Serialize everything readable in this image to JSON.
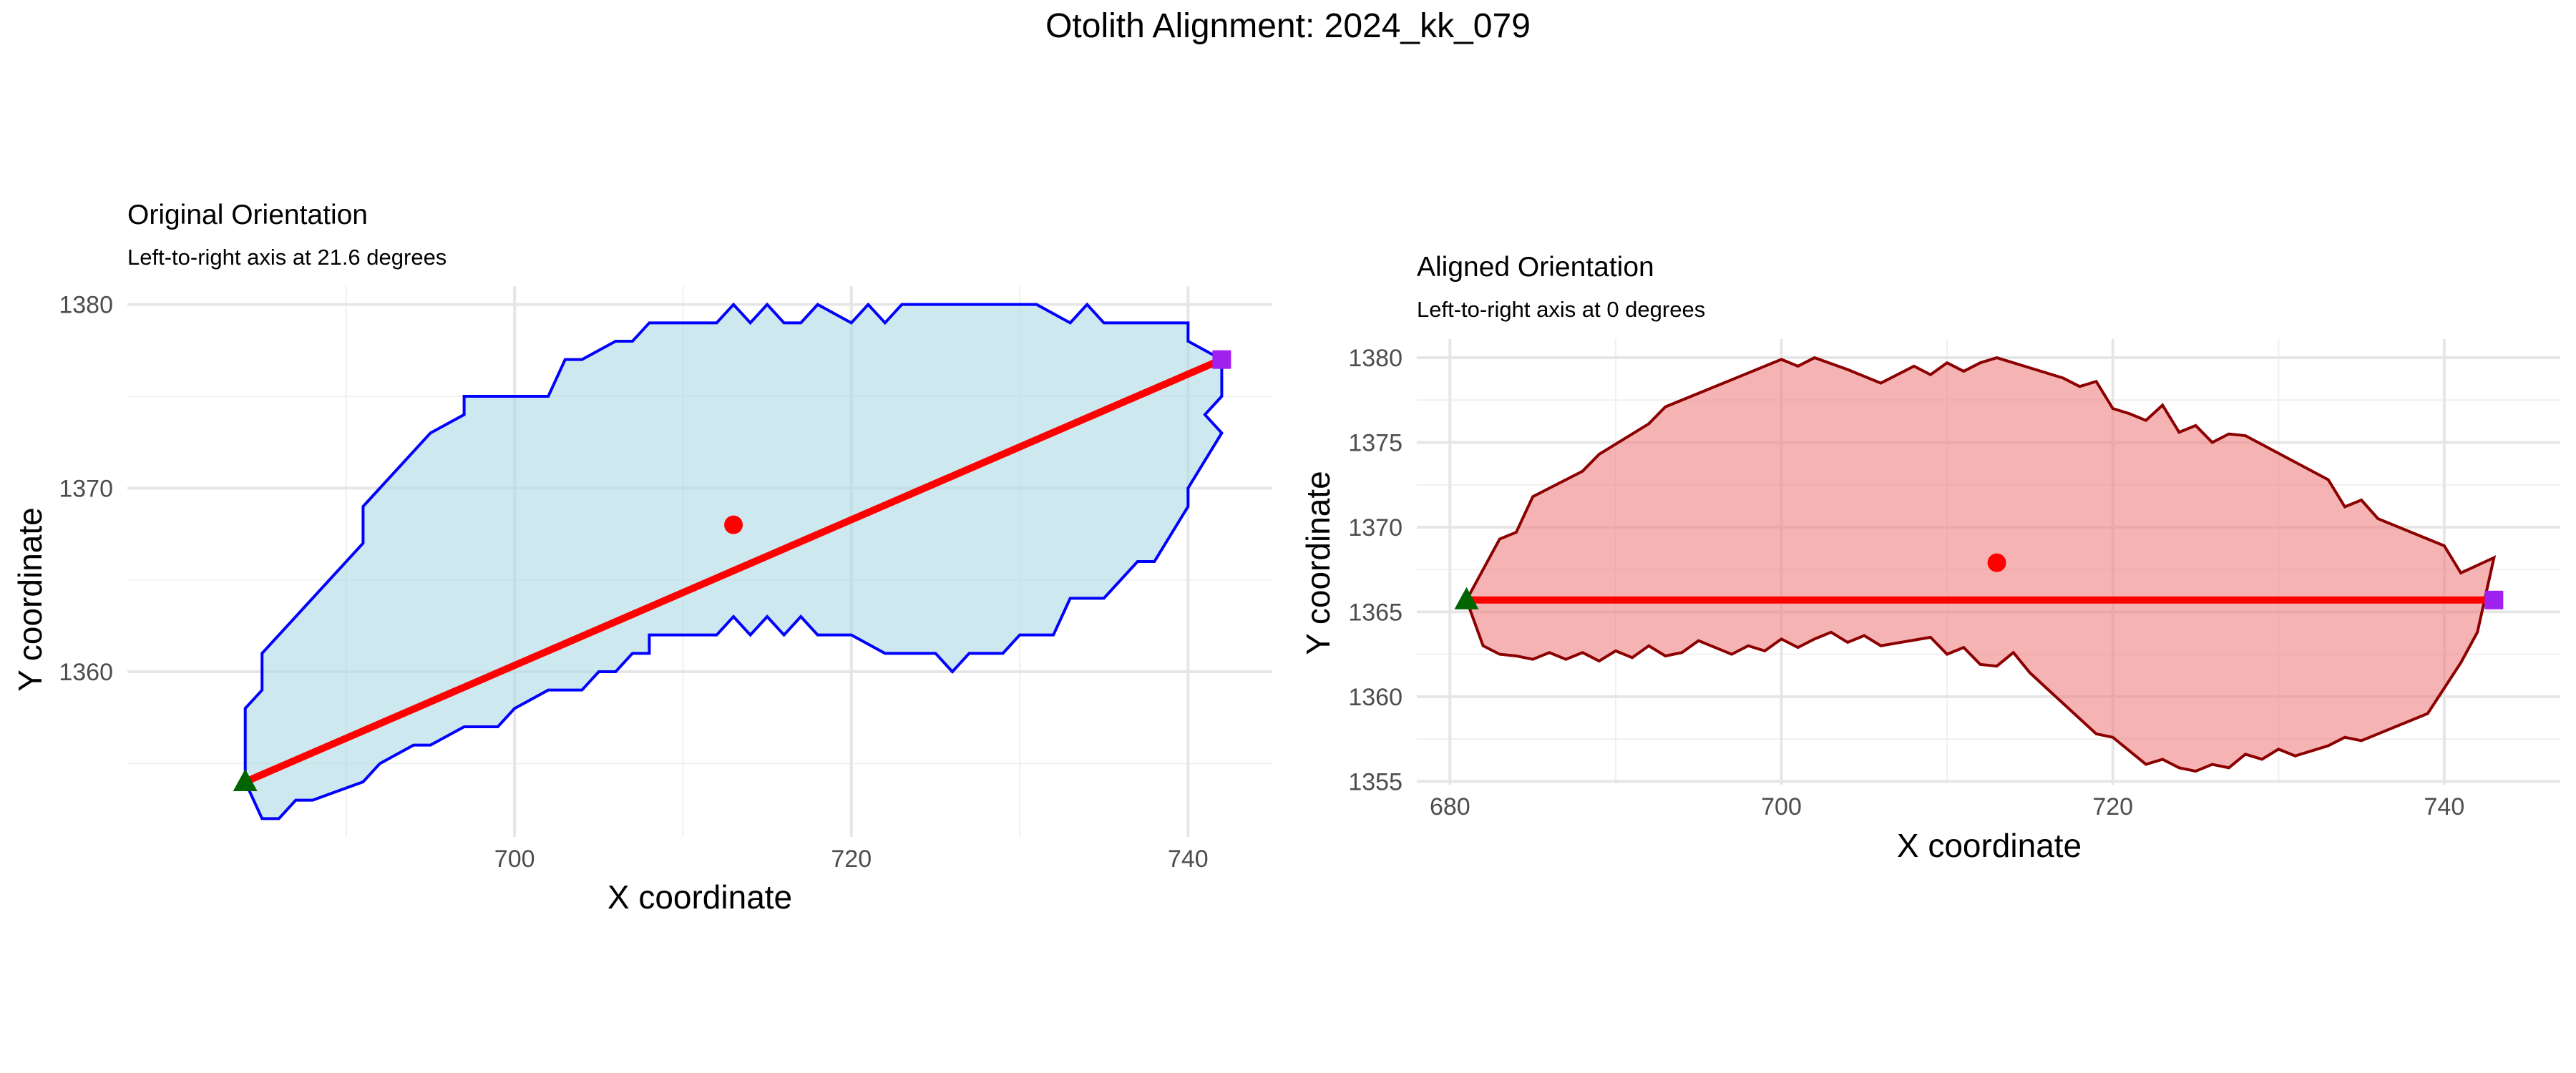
{
  "title": "Otolith Alignment: 2024_kk_079",
  "chart_data": [
    {
      "type": "line",
      "title": "Original Orientation",
      "subtitle": "Left-to-right axis at 21.6 degrees",
      "xlabel": "X coordinate",
      "ylabel": "Y coordinate",
      "xlim": [
        677,
        745
      ],
      "ylim": [
        1351,
        1381
      ],
      "xticks": [
        700,
        720,
        740
      ],
      "yticks": [
        1360,
        1370,
        1380
      ],
      "grid": true,
      "colors": {
        "outline": "#0000ff",
        "fill": "#add8e6",
        "axis_line": "#ff0000",
        "centroid": "#ff0000",
        "start": "#006400",
        "end": "#a020f0"
      },
      "outline": {
        "x": [
          684,
          684,
          685,
          685,
          691,
          691,
          695,
          697,
          697,
          700,
          702,
          703,
          704,
          706,
          707,
          708,
          712,
          713,
          714,
          715,
          716,
          717,
          718,
          720,
          721,
          722,
          723,
          724,
          725,
          726,
          727,
          728,
          729,
          730,
          731,
          733,
          734,
          735,
          736,
          740,
          740,
          742,
          742,
          741,
          742,
          742,
          740,
          740,
          738,
          737,
          735,
          733,
          732,
          730,
          729,
          727,
          726,
          725,
          722,
          720,
          718,
          717,
          716,
          715,
          714,
          713,
          712,
          708,
          708,
          707,
          706,
          705,
          704,
          702,
          700,
          699,
          697,
          695,
          694,
          692,
          691,
          688,
          687,
          686,
          685,
          684
        ],
        "y": [
          1354,
          1358,
          1359,
          1361,
          1367,
          1369,
          1373,
          1374,
          1375,
          1375,
          1375,
          1377,
          1377,
          1378,
          1378,
          1379,
          1379,
          1380,
          1379,
          1380,
          1379,
          1379,
          1380,
          1379,
          1380,
          1379,
          1380,
          1380,
          1380,
          1380,
          1380,
          1380,
          1380,
          1380,
          1380,
          1379,
          1380,
          1379,
          1379,
          1379,
          1378,
          1377,
          1375,
          1374,
          1373,
          1373,
          1370,
          1369,
          1366,
          1366,
          1364,
          1364,
          1362,
          1362,
          1361,
          1361,
          1360,
          1361,
          1361,
          1362,
          1362,
          1363,
          1362,
          1363,
          1362,
          1363,
          1362,
          1362,
          1361,
          1361,
          1360,
          1360,
          1359,
          1359,
          1358,
          1357,
          1357,
          1356,
          1356,
          1355,
          1354,
          1353,
          1353,
          1352,
          1352,
          1354
        ]
      },
      "axis_line": {
        "x": [
          684,
          742
        ],
        "y": [
          1354,
          1377
        ]
      },
      "centroid": {
        "x": 713,
        "y": 1368
      },
      "start_point": {
        "x": 684,
        "y": 1354
      },
      "end_point": {
        "x": 742,
        "y": 1377
      }
    },
    {
      "type": "line",
      "title": "Aligned Orientation",
      "subtitle": "Left-to-right axis at 0 degrees",
      "xlabel": "X coordinate",
      "ylabel": "Y coordinate",
      "xlim": [
        678,
        747
      ],
      "ylim": [
        1354.8,
        1381.1
      ],
      "xticks": [
        680,
        700,
        720,
        740
      ],
      "yticks": [
        1355,
        1360,
        1365,
        1370,
        1375,
        1380
      ],
      "grid": true,
      "colors": {
        "outline": "#8b0000",
        "fill": "#f08080",
        "axis_line": "#ff0000",
        "centroid": "#ff0000",
        "start": "#006400",
        "end": "#a020f0"
      },
      "outline": {
        "x": [
          681,
          682,
          683,
          684,
          685,
          688,
          689,
          692,
          693,
          700,
          701,
          702,
          704,
          706,
          708,
          709,
          710,
          711,
          712,
          713,
          715,
          717,
          718,
          719,
          720,
          721,
          722,
          723,
          724,
          725,
          726,
          727,
          728,
          733,
          734,
          735,
          736,
          740,
          741,
          743,
          742,
          741,
          739,
          738,
          735,
          734,
          733,
          731,
          730,
          729,
          728,
          727,
          726,
          725,
          724,
          723,
          722,
          720,
          719,
          716,
          715,
          714,
          713,
          712,
          711,
          710,
          709,
          706,
          705,
          704,
          703,
          702,
          701,
          700,
          699,
          698,
          697,
          695,
          694,
          693,
          692,
          691,
          690,
          689,
          688,
          687,
          686,
          685,
          684,
          683,
          682,
          681
        ],
        "y": [
          1365.7,
          1367.5,
          1369.3,
          1369.7,
          1371.8,
          1373.3,
          1374.3,
          1376.1,
          1377.1,
          1379.9,
          1379.5,
          1380.0,
          1379.3,
          1378.5,
          1379.5,
          1379.0,
          1379.7,
          1379.2,
          1379.7,
          1380.0,
          1379.4,
          1378.8,
          1378.3,
          1378.6,
          1377.0,
          1376.7,
          1376.3,
          1377.2,
          1375.6,
          1376.0,
          1375.0,
          1375.5,
          1375.4,
          1372.8,
          1371.2,
          1371.6,
          1370.5,
          1368.9,
          1367.3,
          1368.2,
          1363.8,
          1362.0,
          1359.0,
          1358.6,
          1357.4,
          1357.6,
          1357.1,
          1356.5,
          1356.9,
          1356.3,
          1356.6,
          1355.8,
          1356.0,
          1355.6,
          1355.8,
          1356.3,
          1356.0,
          1357.6,
          1357.8,
          1360.5,
          1361.4,
          1362.6,
          1361.8,
          1361.9,
          1362.9,
          1362.5,
          1363.5,
          1363.0,
          1363.6,
          1363.2,
          1363.8,
          1363.4,
          1362.9,
          1363.4,
          1362.7,
          1363.0,
          1362.5,
          1363.3,
          1362.6,
          1362.4,
          1363.0,
          1362.3,
          1362.7,
          1362.1,
          1362.6,
          1362.2,
          1362.6,
          1362.2,
          1362.4,
          1362.5,
          1363.0,
          1365.7
        ]
      },
      "axis_line": {
        "x": [
          681,
          743
        ],
        "y": [
          1365.7,
          1365.7
        ]
      },
      "centroid": {
        "x": 713,
        "y": 1367.9
      },
      "start_point": {
        "x": 681,
        "y": 1365.7
      },
      "end_point": {
        "x": 743,
        "y": 1365.7
      }
    }
  ]
}
